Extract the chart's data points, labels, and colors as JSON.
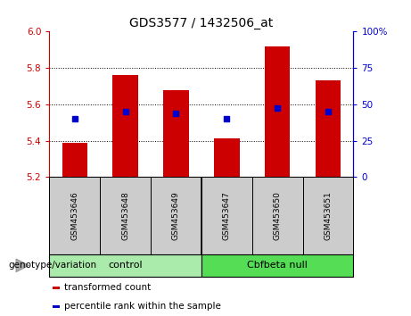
{
  "title": "GDS3577 / 1432506_at",
  "samples": [
    "GSM453646",
    "GSM453648",
    "GSM453649",
    "GSM453647",
    "GSM453650",
    "GSM453651"
  ],
  "bar_bottoms": [
    5.2,
    5.2,
    5.2,
    5.2,
    5.2,
    5.2
  ],
  "bar_tops": [
    5.39,
    5.76,
    5.68,
    5.41,
    5.92,
    5.73
  ],
  "percentile_values": [
    5.52,
    5.56,
    5.55,
    5.52,
    5.58,
    5.56
  ],
  "ylim": [
    5.2,
    6.0
  ],
  "yticks": [
    5.2,
    5.4,
    5.6,
    5.8,
    6.0
  ],
  "right_yticks": [
    0,
    25,
    50,
    75,
    100
  ],
  "bar_color": "#cc0000",
  "percentile_color": "#0000cc",
  "group_labels": [
    "control",
    "Cbfbeta null"
  ],
  "group_colors": [
    "#aaeaaa",
    "#55dd55"
  ],
  "genotype_label": "genotype/variation",
  "legend_items": [
    {
      "label": "transformed count",
      "color": "#cc0000"
    },
    {
      "label": "percentile rank within the sample",
      "color": "#0000cc"
    }
  ],
  "tick_color_left": "#cc0000",
  "tick_color_right": "#0000cc",
  "bar_width": 0.5,
  "label_bg_color": "#cccccc"
}
